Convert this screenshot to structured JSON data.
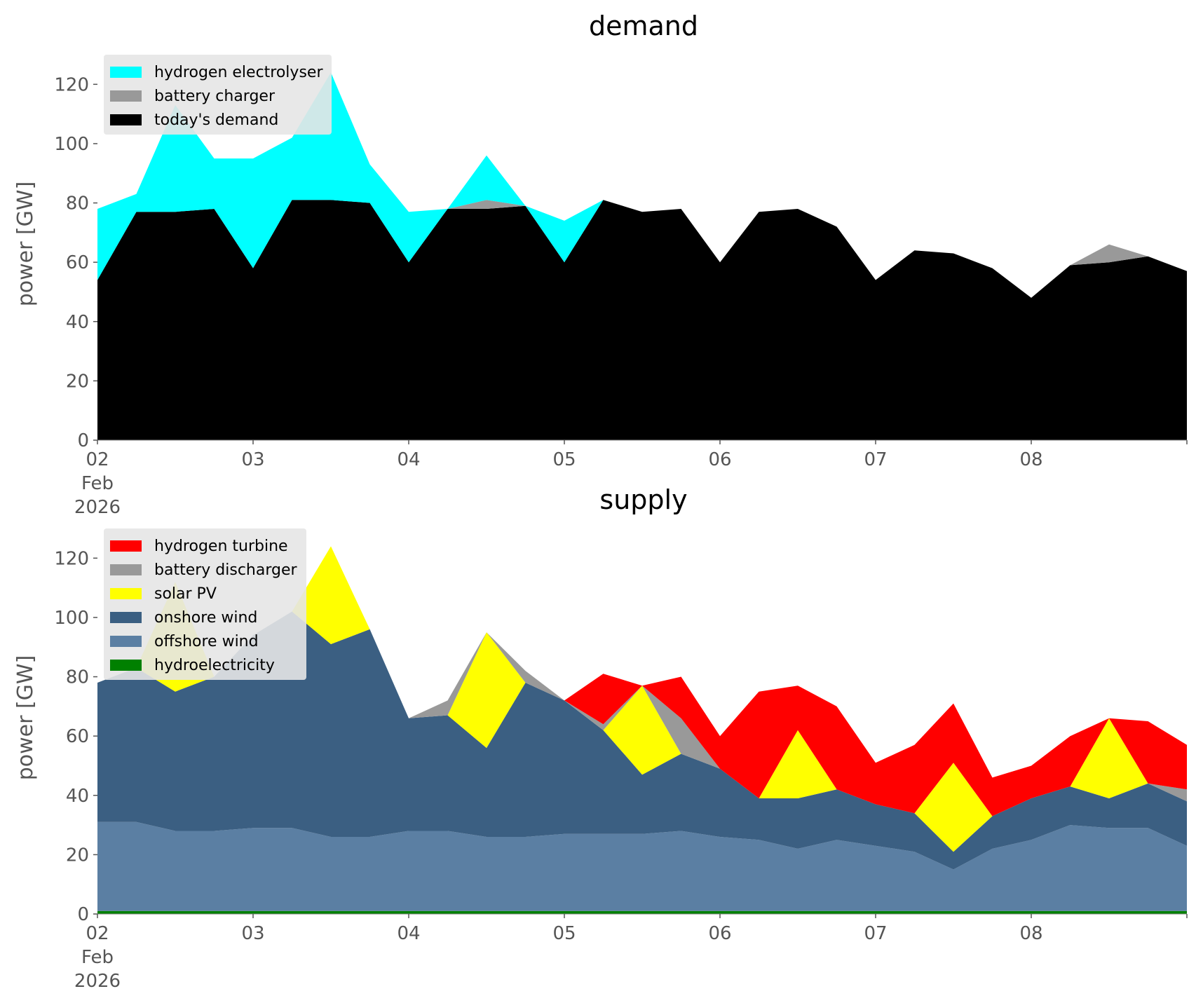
{
  "chart_data": [
    {
      "type": "area",
      "stacked": true,
      "title": "demand",
      "ylabel": "power [GW]",
      "ylim": [
        0,
        130
      ],
      "yticks": [
        0,
        20,
        40,
        60,
        80,
        100,
        120
      ],
      "xlim": [
        0,
        7
      ],
      "x_unit": "days since 02 Feb 2026",
      "xticks": [
        {
          "pos": 0,
          "label": "02",
          "sub1": "Feb",
          "sub2": "2026"
        },
        {
          "pos": 1,
          "label": "03"
        },
        {
          "pos": 2,
          "label": "04"
        },
        {
          "pos": 3,
          "label": "05"
        },
        {
          "pos": 4,
          "label": "06"
        },
        {
          "pos": 5,
          "label": "07"
        },
        {
          "pos": 6,
          "label": "08"
        }
      ],
      "x": [
        0,
        0.25,
        0.5,
        0.75,
        1,
        1.25,
        1.5,
        1.75,
        2,
        2.25,
        2.5,
        2.75,
        3,
        3.25,
        3.5,
        3.75,
        4,
        4.25,
        4.5,
        4.75,
        5,
        5.25,
        5.5,
        5.75,
        6,
        6.25,
        6.5,
        6.75,
        7
      ],
      "legend": {
        "placement": "upper-left",
        "order": [
          "hydrogen electrolyser",
          "battery charger",
          "today's demand"
        ]
      },
      "series": [
        {
          "name": "today's demand",
          "color": "#000000",
          "values": [
            54,
            77,
            77,
            78,
            58,
            81,
            81,
            80,
            60,
            78,
            78,
            79,
            60,
            81,
            77,
            78,
            60,
            77,
            78,
            72,
            54,
            64,
            63,
            58,
            48,
            59,
            60,
            62,
            57
          ]
        },
        {
          "name": "battery charger",
          "color": "#999999",
          "values": [
            0,
            0,
            0,
            0,
            0,
            0,
            0,
            0,
            0,
            0,
            3,
            0,
            0,
            0,
            0,
            0,
            0,
            0,
            0,
            0,
            0,
            0,
            0,
            0,
            0,
            0,
            6,
            0,
            0
          ]
        },
        {
          "name": "hydrogen electrolyser",
          "color": "#00ffff",
          "values": [
            24,
            6,
            36,
            17,
            37,
            21,
            43,
            13,
            17,
            0,
            15,
            0,
            14,
            0,
            0,
            0,
            0,
            0,
            0,
            0,
            0,
            0,
            0,
            0,
            0,
            0,
            0,
            0,
            0
          ]
        }
      ]
    },
    {
      "type": "area",
      "stacked": true,
      "title": "supply",
      "ylabel": "power [GW]",
      "ylim": [
        0,
        130
      ],
      "yticks": [
        0,
        20,
        40,
        60,
        80,
        100,
        120
      ],
      "xlim": [
        0,
        7
      ],
      "x_unit": "days since 02 Feb 2026",
      "xticks": [
        {
          "pos": 0,
          "label": "02",
          "sub1": "Feb",
          "sub2": "2026"
        },
        {
          "pos": 1,
          "label": "03"
        },
        {
          "pos": 2,
          "label": "04"
        },
        {
          "pos": 3,
          "label": "05"
        },
        {
          "pos": 4,
          "label": "06"
        },
        {
          "pos": 5,
          "label": "07"
        },
        {
          "pos": 6,
          "label": "08"
        }
      ],
      "x": [
        0,
        0.25,
        0.5,
        0.75,
        1,
        1.25,
        1.5,
        1.75,
        2,
        2.25,
        2.5,
        2.75,
        3,
        3.25,
        3.5,
        3.75,
        4,
        4.25,
        4.5,
        4.75,
        5,
        5.25,
        5.5,
        5.75,
        6,
        6.25,
        6.5,
        6.75,
        7
      ],
      "legend": {
        "placement": "upper-left",
        "order": [
          "hydrogen turbine",
          "battery discharger",
          "solar PV",
          "onshore wind",
          "offshore wind",
          "hydroelectricity"
        ]
      },
      "series": [
        {
          "name": "hydroelectricity",
          "color": "#008000",
          "values": [
            1,
            1,
            1,
            1,
            1,
            1,
            1,
            1,
            1,
            1,
            1,
            1,
            1,
            1,
            1,
            1,
            1,
            1,
            1,
            1,
            1,
            1,
            1,
            1,
            1,
            1,
            1,
            1,
            1
          ]
        },
        {
          "name": "offshore wind",
          "color": "#5b7fa3",
          "values": [
            30,
            30,
            27,
            27,
            28,
            28,
            25,
            25,
            27,
            27,
            25,
            25,
            26,
            26,
            26,
            27,
            25,
            24,
            21,
            24,
            22,
            20,
            14,
            21,
            24,
            29,
            28,
            28,
            22
          ]
        },
        {
          "name": "onshore wind",
          "color": "#3b5f82",
          "values": [
            47,
            52,
            47,
            52,
            65,
            73,
            65,
            70,
            38,
            39,
            30,
            52,
            45,
            35,
            20,
            26,
            23,
            14,
            17,
            17,
            14,
            13,
            6,
            11,
            14,
            13,
            10,
            15,
            15
          ]
        },
        {
          "name": "solar PV",
          "color": "#ffff00",
          "values": [
            0,
            0,
            37,
            0,
            0,
            0,
            33,
            0,
            0,
            0,
            39,
            0,
            0,
            0,
            30,
            0,
            0,
            0,
            23,
            0,
            0,
            0,
            30,
            0,
            0,
            0,
            27,
            0,
            0
          ]
        },
        {
          "name": "battery discharger",
          "color": "#999999",
          "values": [
            0,
            0,
            0,
            0,
            0,
            0,
            0,
            0,
            0,
            5,
            0,
            4,
            0,
            2,
            0,
            12,
            0,
            0,
            0,
            0,
            0,
            0,
            0,
            0,
            0,
            0,
            0,
            0,
            4
          ]
        },
        {
          "name": "hydrogen turbine",
          "color": "#ff0000",
          "values": [
            0,
            0,
            0,
            0,
            0,
            0,
            0,
            0,
            0,
            0,
            0,
            0,
            0,
            17,
            0,
            14,
            11,
            36,
            15,
            28,
            14,
            23,
            20,
            13,
            11,
            17,
            0,
            21,
            15
          ]
        }
      ]
    }
  ]
}
